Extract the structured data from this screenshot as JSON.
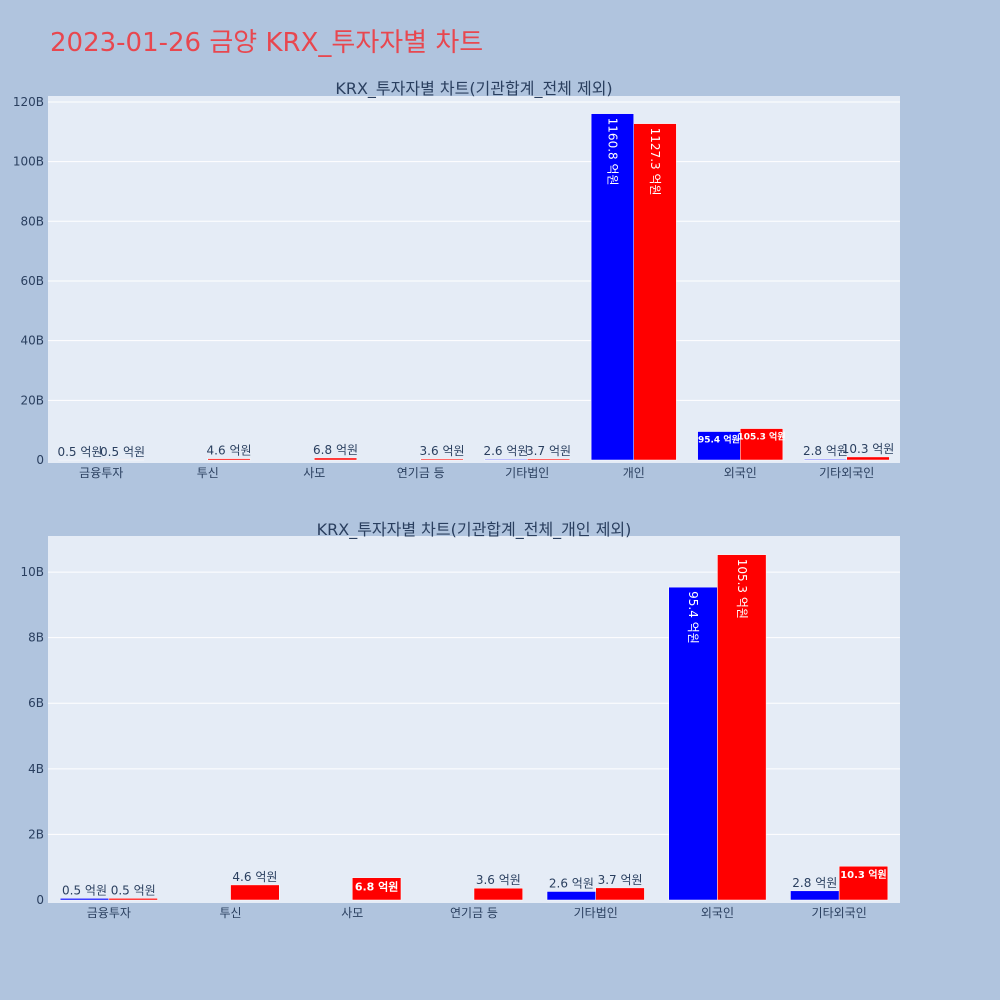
{
  "page": {
    "title": "2023-01-26 금양 KRX_투자자별 차트"
  },
  "colors": {
    "buy": "#0000ff",
    "sell": "#ff0000"
  },
  "chart_data": [
    {
      "type": "bar",
      "title": "KRX_투자자별 차트(기관합계_전체 제외)",
      "categories": [
        "금융투자",
        "투신",
        "사모",
        "연기금 등",
        "기타법인",
        "개인",
        "외국인",
        "기타외국인"
      ],
      "series": [
        {
          "color": "#0000ff",
          "values": [
            50000000,
            0,
            0,
            0,
            260000000,
            116080000000,
            9540000000,
            280000000
          ],
          "labels": [
            "0.5 억원",
            "",
            "",
            "",
            "2.6 억원",
            "1160.8 억원",
            "95.4 억원",
            "2.8 억원"
          ]
        },
        {
          "color": "#ff0000",
          "values": [
            50000000,
            460000000,
            680000000,
            360000000,
            370000000,
            112730000000,
            10530000000,
            1030000000
          ],
          "labels": [
            "0.5 억원",
            "4.6 억원",
            "6.8 억원",
            "3.6 억원",
            "3.7 억원",
            "1127.3 억원",
            "105.3 억원",
            "10.3 억원"
          ]
        }
      ],
      "yticks": [
        0,
        20000000000,
        40000000000,
        60000000000,
        80000000000,
        100000000000,
        120000000000
      ],
      "ytick_labels": [
        "0",
        "20B",
        "40B",
        "60B",
        "80B",
        "100B",
        "120B"
      ],
      "ylim": [
        0,
        122000000000
      ],
      "grid": true
    },
    {
      "type": "bar",
      "title": "KRX_투자자별 차트(기관합계_전체_개인 제외)",
      "categories": [
        "금융투자",
        "투신",
        "사모",
        "연기금 등",
        "기타법인",
        "외국인",
        "기타외국인"
      ],
      "series": [
        {
          "color": "#0000ff",
          "values": [
            50000000,
            0,
            0,
            0,
            260000000,
            9540000000,
            280000000
          ],
          "labels": [
            "0.5 억원",
            "",
            "",
            "",
            "2.6 억원",
            "95.4 억원",
            "2.8 억원"
          ]
        },
        {
          "color": "#ff0000",
          "values": [
            50000000,
            460000000,
            680000000,
            360000000,
            370000000,
            10530000000,
            1030000000
          ],
          "labels": [
            "0.5 억원",
            "4.6 억원",
            "6.8 억원",
            "3.6 억원",
            "3.7 억원",
            "105.3 억원",
            "10.3 억원"
          ]
        }
      ],
      "yticks": [
        0,
        2000000000,
        4000000000,
        6000000000,
        8000000000,
        10000000000
      ],
      "ytick_labels": [
        "0",
        "2B",
        "4B",
        "6B",
        "8B",
        "10B"
      ],
      "ylim": [
        0,
        11100000000
      ],
      "grid": true
    }
  ]
}
